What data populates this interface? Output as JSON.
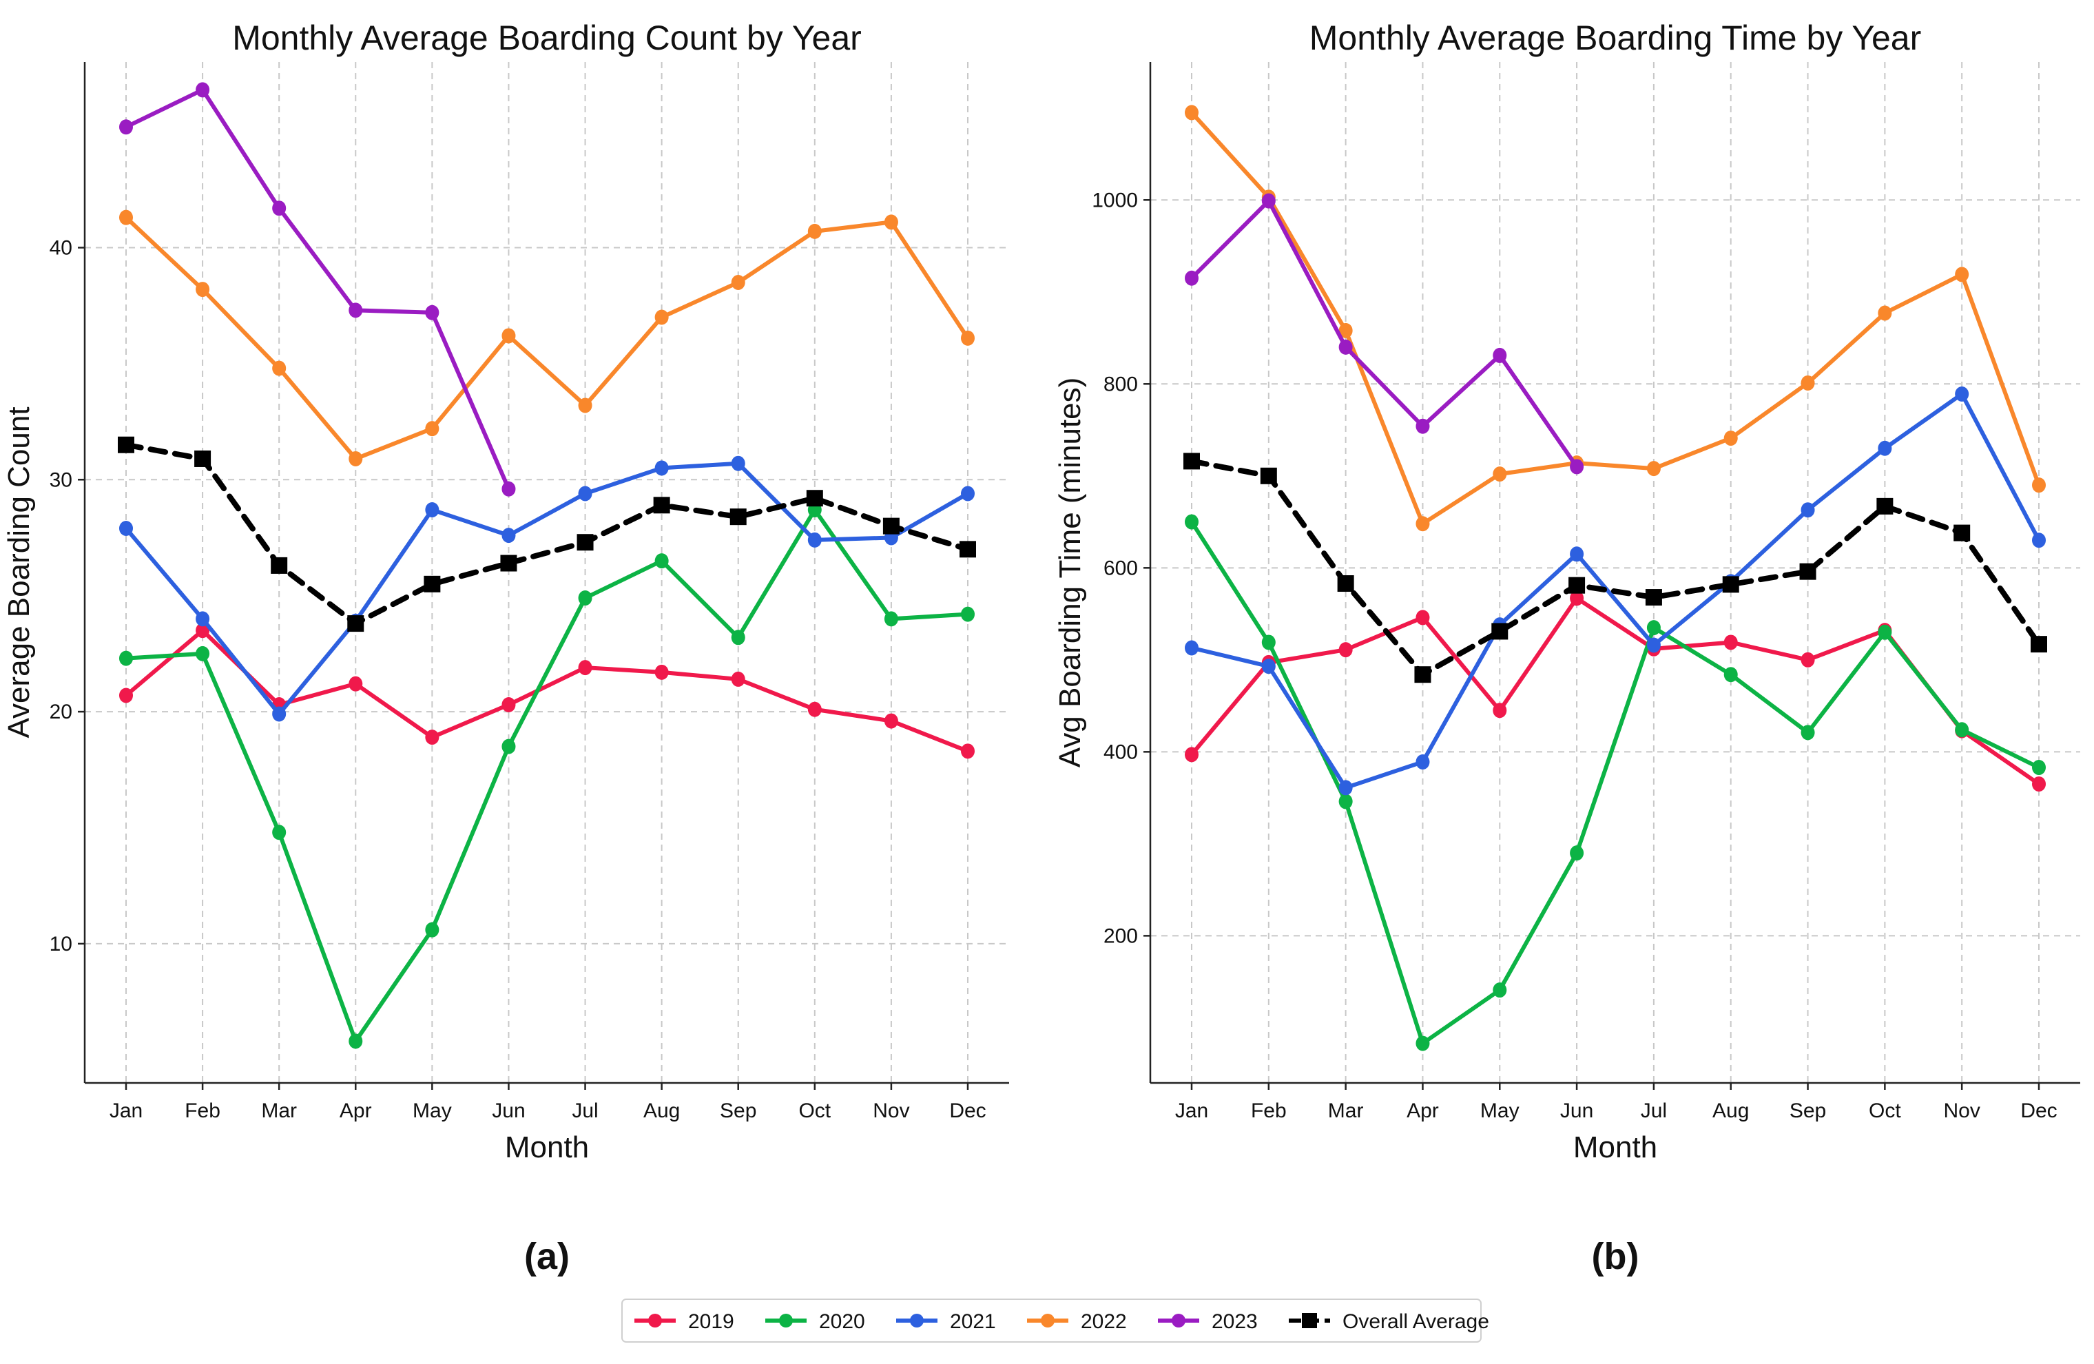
{
  "chart_data": [
    {
      "type": "line",
      "title": "Monthly Average Boarding Count by Year",
      "xlabel": "Month",
      "ylabel": "Average Boarding Count",
      "panel_label": "(a)",
      "categories": [
        "Jan",
        "Feb",
        "Mar",
        "Apr",
        "May",
        "Jun",
        "Jul",
        "Aug",
        "Sep",
        "Oct",
        "Nov",
        "Dec"
      ],
      "ylim": [
        4,
        48
      ],
      "yticks": [
        10,
        20,
        30,
        40
      ],
      "grid": true,
      "series": [
        {
          "name": "2019",
          "color": "#F0194B",
          "values": [
            20.7,
            23.5,
            20.3,
            21.2,
            18.9,
            20.3,
            21.9,
            21.7,
            21.4,
            20.1,
            19.6,
            18.3
          ]
        },
        {
          "name": "2020",
          "color": "#0CB345",
          "values": [
            22.3,
            22.5,
            14.8,
            5.8,
            10.6,
            18.5,
            24.9,
            26.5,
            23.2,
            28.7,
            24.0,
            24.2
          ]
        },
        {
          "name": "2021",
          "color": "#2D60DF",
          "values": [
            27.9,
            24.0,
            19.9,
            23.9,
            28.7,
            27.6,
            29.4,
            30.5,
            30.7,
            27.4,
            27.5,
            29.4
          ]
        },
        {
          "name": "2022",
          "color": "#F9872B",
          "values": [
            41.3,
            38.2,
            34.8,
            30.9,
            32.2,
            36.2,
            33.2,
            37.0,
            38.5,
            40.7,
            41.1,
            36.1
          ]
        },
        {
          "name": "2023",
          "color": "#9A1CC2",
          "values": [
            45.2,
            46.8,
            41.7,
            37.3,
            37.2,
            29.6,
            null,
            null,
            null,
            null,
            null,
            null
          ]
        },
        {
          "name": "Overall Average",
          "color": "#000000",
          "dashed": true,
          "marker": "square",
          "values": [
            31.5,
            30.9,
            26.3,
            23.8,
            25.5,
            26.4,
            27.3,
            28.9,
            28.4,
            29.2,
            28.0,
            27.0
          ]
        }
      ]
    },
    {
      "type": "line",
      "title": "Monthly Average Boarding Time by Year",
      "xlabel": "Month",
      "ylabel": "Avg Boarding Time (minutes)",
      "panel_label": "(b)",
      "categories": [
        "Jan",
        "Feb",
        "Mar",
        "Apr",
        "May",
        "Jun",
        "Jul",
        "Aug",
        "Sep",
        "Oct",
        "Nov",
        "Dec"
      ],
      "ylim": [
        40,
        1150
      ],
      "yticks": [
        200,
        400,
        600,
        800,
        1000
      ],
      "grid": true,
      "series": [
        {
          "name": "2019",
          "color": "#F0194B",
          "values": [
            397,
            497,
            511,
            546,
            445,
            567,
            512,
            519,
            500,
            532,
            423,
            365
          ]
        },
        {
          "name": "2020",
          "color": "#0CB345",
          "values": [
            650,
            519,
            346,
            83,
            141,
            290,
            535,
            484,
            421,
            530,
            424,
            383
          ]
        },
        {
          "name": "2021",
          "color": "#2D60DF",
          "values": [
            513,
            493,
            361,
            389,
            538,
            615,
            516,
            585,
            663,
            730,
            789,
            630
          ]
        },
        {
          "name": "2022",
          "color": "#F9872B",
          "values": [
            1095,
            1003,
            858,
            648,
            702,
            714,
            708,
            741,
            801,
            877,
            919,
            690
          ]
        },
        {
          "name": "2023",
          "color": "#9A1CC2",
          "values": [
            915,
            999,
            840,
            754,
            831,
            710,
            null,
            null,
            null,
            null,
            null,
            null
          ]
        },
        {
          "name": "Overall Average",
          "color": "#000000",
          "dashed": true,
          "marker": "square",
          "values": [
            716,
            700,
            583,
            484,
            531,
            581,
            568,
            582,
            596,
            667,
            638,
            517
          ]
        }
      ]
    }
  ],
  "legend": {
    "placement": "bottom-center",
    "entries": [
      {
        "label": "2019",
        "color": "#F0194B",
        "marker": "circle"
      },
      {
        "label": "2020",
        "color": "#0CB345",
        "marker": "circle"
      },
      {
        "label": "2021",
        "color": "#2D60DF",
        "marker": "circle"
      },
      {
        "label": "2022",
        "color": "#F9872B",
        "marker": "circle"
      },
      {
        "label": "2023",
        "color": "#9A1CC2",
        "marker": "circle"
      },
      {
        "label": "Overall Average",
        "color": "#000000",
        "marker": "square",
        "dashed": true
      }
    ]
  }
}
